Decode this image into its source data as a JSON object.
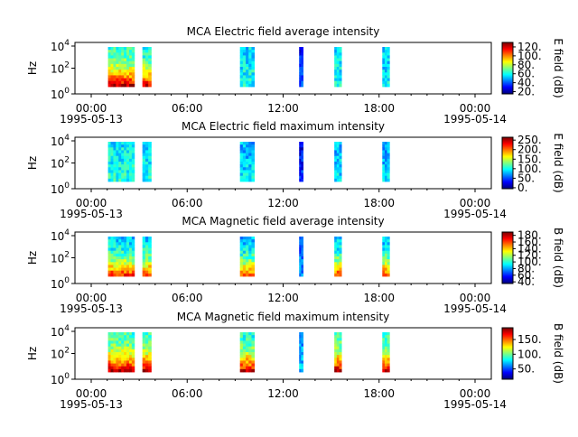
{
  "chart_data": [
    {
      "type": "heatmap",
      "title": "MCA  Electric field average intensity",
      "ylabel": "Hz",
      "y_scale": "log",
      "y_ticks": [
        "10^0",
        "10^2",
        "10^4"
      ],
      "x_ticks": [
        "00:00",
        "06:00",
        "12:00",
        "18:00",
        "00:00"
      ],
      "x_range": [
        "1995-05-13 00:00",
        "1995-05-14 00:00"
      ],
      "x_date_labels": [
        "1995-05-13",
        "1995-05-14"
      ],
      "colorbar": {
        "label": "E field (dB)",
        "ticks": [
          "20.",
          "40.",
          "60.",
          "80.",
          "100.",
          "120."
        ],
        "range": [
          15,
          130
        ]
      },
      "segments": [
        {
          "start": 1.05,
          "end": 2.7,
          "level": 70,
          "hot": true
        },
        {
          "start": 3.2,
          "end": 3.75,
          "level": 65,
          "hot": true
        },
        {
          "start": 9.3,
          "end": 10.2,
          "level": 60,
          "hot": false
        },
        {
          "start": 13.0,
          "end": 13.25,
          "level": 35,
          "hot": false
        },
        {
          "start": 15.2,
          "end": 15.65,
          "level": 60,
          "hot": false
        },
        {
          "start": 18.2,
          "end": 18.65,
          "level": 58,
          "hot": false
        }
      ]
    },
    {
      "type": "heatmap",
      "title": "MCA  Electric field maximum intensity",
      "ylabel": "Hz",
      "y_scale": "log",
      "y_ticks": [
        "10^0",
        "10^2",
        "10^4"
      ],
      "x_ticks": [
        "00:00",
        "06:00",
        "12:00",
        "18:00",
        "00:00"
      ],
      "x_range": [
        "1995-05-13 00:00",
        "1995-05-14 00:00"
      ],
      "x_date_labels": [
        "1995-05-13",
        "1995-05-14"
      ],
      "colorbar": {
        "label": "E field (dB)",
        "ticks": [
          "0.",
          "50.",
          "100.",
          "150.",
          "200.",
          "250."
        ],
        "range": [
          -5,
          265
        ]
      },
      "segments": [
        {
          "start": 1.05,
          "end": 2.7,
          "level": 105,
          "hot": false
        },
        {
          "start": 3.2,
          "end": 3.75,
          "level": 100,
          "hot": false
        },
        {
          "start": 9.3,
          "end": 10.2,
          "level": 90,
          "hot": false
        },
        {
          "start": 13.0,
          "end": 13.25,
          "level": 40,
          "hot": false
        },
        {
          "start": 15.2,
          "end": 15.65,
          "level": 90,
          "hot": false
        },
        {
          "start": 18.2,
          "end": 18.65,
          "level": 88,
          "hot": false
        }
      ]
    },
    {
      "type": "heatmap",
      "title": "MCA  Magnetic field average intensity",
      "ylabel": "Hz",
      "y_scale": "log",
      "y_ticks": [
        "10^0",
        "10^2",
        "10^4"
      ],
      "x_ticks": [
        "00:00",
        "06:00",
        "12:00",
        "18:00",
        "00:00"
      ],
      "x_range": [
        "1995-05-13 00:00",
        "1995-05-14 00:00"
      ],
      "x_date_labels": [
        "1995-05-13",
        "1995-05-14"
      ],
      "colorbar": {
        "label": "B field (dB)",
        "ticks": [
          "40.",
          "60.",
          "80.",
          "100.",
          "120.",
          "140.",
          "160.",
          "180."
        ],
        "range": [
          35,
          190
        ]
      },
      "segments": [
        {
          "start": 1.05,
          "end": 2.7,
          "level": 95,
          "hot": true
        },
        {
          "start": 3.2,
          "end": 3.75,
          "level": 95,
          "hot": true
        },
        {
          "start": 9.3,
          "end": 10.2,
          "level": 90,
          "hot": true
        },
        {
          "start": 13.0,
          "end": 13.25,
          "level": 75,
          "hot": false
        },
        {
          "start": 15.2,
          "end": 15.65,
          "level": 92,
          "hot": true
        },
        {
          "start": 18.2,
          "end": 18.65,
          "level": 92,
          "hot": true
        }
      ]
    },
    {
      "type": "heatmap",
      "title": "MCA  Magnetic field maximum intensity",
      "ylabel": "Hz",
      "y_scale": "log",
      "y_ticks": [
        "10^0",
        "10^2",
        "10^4"
      ],
      "x_ticks": [
        "00:00",
        "06:00",
        "12:00",
        "18:00",
        "00:00"
      ],
      "x_range": [
        "1995-05-13 00:00",
        "1995-05-14 00:00"
      ],
      "x_date_labels": [
        "1995-05-13",
        "1995-05-14"
      ],
      "colorbar": {
        "label": "B field (dB)",
        "ticks": [
          "50.",
          "100.",
          "150."
        ],
        "range": [
          15,
          190
        ]
      },
      "segments": [
        {
          "start": 1.05,
          "end": 2.7,
          "level": 100,
          "hot": true
        },
        {
          "start": 3.2,
          "end": 3.75,
          "level": 100,
          "hot": true
        },
        {
          "start": 9.3,
          "end": 10.2,
          "level": 95,
          "hot": true
        },
        {
          "start": 13.0,
          "end": 13.25,
          "level": 70,
          "hot": false
        },
        {
          "start": 15.2,
          "end": 15.65,
          "level": 98,
          "hot": true
        },
        {
          "start": 18.2,
          "end": 18.65,
          "level": 98,
          "hot": true
        }
      ]
    }
  ]
}
